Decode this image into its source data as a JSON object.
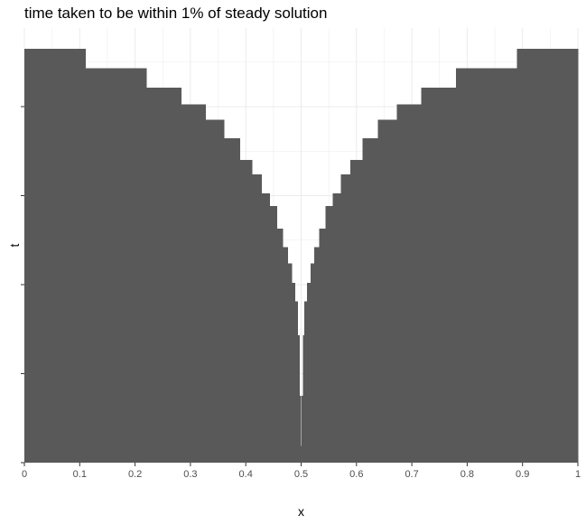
{
  "chart_data": {
    "type": "bar",
    "title": "time taken to be within 1% of steady solution",
    "xlabel": "x",
    "ylabel": "t",
    "xlim": [
      0,
      1
    ],
    "x_ticks": [
      "0",
      "0.1",
      "0.2",
      "0.3",
      "0.4",
      "0.5",
      "0.6",
      "0.7",
      "0.8",
      "0.9",
      "1"
    ],
    "y_tick_count": 5,
    "y_tick_labels_shown": false,
    "y_scale": "relative (0 = bottom baseline, 1 = top of tallest bar)",
    "grid": true,
    "bar_color": "#595959",
    "panel_background": "#ffffff",
    "grid_color": "#ebebeb",
    "bars": [
      {
        "x0": 0.0,
        "x1": 0.11,
        "t": 1.0
      },
      {
        "x0": 0.11,
        "x1": 0.22,
        "t": 0.953
      },
      {
        "x0": 0.22,
        "x1": 0.283,
        "t": 0.906
      },
      {
        "x0": 0.283,
        "x1": 0.327,
        "t": 0.866
      },
      {
        "x0": 0.327,
        "x1": 0.361,
        "t": 0.829
      },
      {
        "x0": 0.361,
        "x1": 0.389,
        "t": 0.784
      },
      {
        "x0": 0.389,
        "x1": 0.411,
        "t": 0.731
      },
      {
        "x0": 0.411,
        "x1": 0.428,
        "t": 0.696
      },
      {
        "x0": 0.428,
        "x1": 0.443,
        "t": 0.651
      },
      {
        "x0": 0.443,
        "x1": 0.456,
        "t": 0.62
      },
      {
        "x0": 0.456,
        "x1": 0.467,
        "t": 0.566
      },
      {
        "x0": 0.467,
        "x1": 0.476,
        "t": 0.521
      },
      {
        "x0": 0.476,
        "x1": 0.483,
        "t": 0.481
      },
      {
        "x0": 0.483,
        "x1": 0.489,
        "t": 0.434
      },
      {
        "x0": 0.489,
        "x1": 0.494,
        "t": 0.39
      },
      {
        "x0": 0.494,
        "x1": 0.497,
        "t": 0.308
      },
      {
        "x0": 0.497,
        "x1": 0.499,
        "t": 0.162
      },
      {
        "x0": 0.499,
        "x1": 0.501,
        "t": 0.04
      },
      {
        "x0": 0.501,
        "x1": 0.503,
        "t": 0.162
      },
      {
        "x0": 0.503,
        "x1": 0.506,
        "t": 0.308
      },
      {
        "x0": 0.506,
        "x1": 0.511,
        "t": 0.39
      },
      {
        "x0": 0.511,
        "x1": 0.517,
        "t": 0.434
      },
      {
        "x0": 0.517,
        "x1": 0.524,
        "t": 0.481
      },
      {
        "x0": 0.524,
        "x1": 0.533,
        "t": 0.521
      },
      {
        "x0": 0.533,
        "x1": 0.544,
        "t": 0.566
      },
      {
        "x0": 0.544,
        "x1": 0.557,
        "t": 0.62
      },
      {
        "x0": 0.557,
        "x1": 0.572,
        "t": 0.651
      },
      {
        "x0": 0.572,
        "x1": 0.589,
        "t": 0.696
      },
      {
        "x0": 0.589,
        "x1": 0.611,
        "t": 0.731
      },
      {
        "x0": 0.611,
        "x1": 0.639,
        "t": 0.784
      },
      {
        "x0": 0.639,
        "x1": 0.673,
        "t": 0.829
      },
      {
        "x0": 0.673,
        "x1": 0.717,
        "t": 0.866
      },
      {
        "x0": 0.717,
        "x1": 0.78,
        "t": 0.906
      },
      {
        "x0": 0.78,
        "x1": 0.89,
        "t": 0.953
      },
      {
        "x0": 0.89,
        "x1": 1.0,
        "t": 1.0
      }
    ]
  }
}
